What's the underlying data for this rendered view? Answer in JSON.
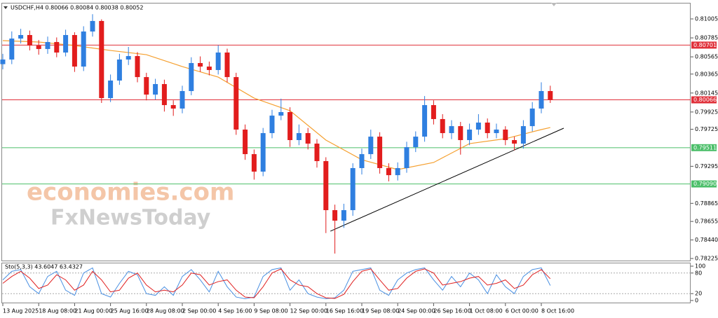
{
  "chart_data": [
    {
      "type": "candlestick",
      "title": "USDCHF,H4 0.80066 0.80084 0.80038 0.80052",
      "watermark": [
        "economies.com",
        "FxNewsToday"
      ],
      "categories": [
        "13 Aug 2025",
        null,
        null,
        null,
        "18 Aug 08:00",
        null,
        null,
        null,
        "21 Aug 00:00",
        null,
        null,
        null,
        "25 Aug 16:00",
        null,
        null,
        null,
        "28 Aug 08:00",
        null,
        null,
        null,
        "2 Sep 00:00",
        null,
        null,
        null,
        "4 Sep 16:00",
        null,
        null,
        null,
        "9 Sep 08:00",
        null,
        null,
        null,
        "12 Sep 00:00",
        null,
        null,
        null,
        "16 Sep 16:00",
        null,
        null,
        null,
        "19 Sep 08:00",
        null,
        null,
        null,
        "24 Sep 00:00",
        null,
        null,
        null,
        "26 Sep 16:00",
        null,
        null,
        null,
        "1 Oct 08:00",
        null,
        null,
        null,
        "6 Oct 00:00",
        null,
        null,
        null,
        "8 Oct 16:00",
        null
      ],
      "open": [
        0.8048,
        0.80534,
        0.80777,
        0.80818,
        0.80696,
        0.80656,
        0.80737,
        0.80615,
        0.80818,
        0.80452,
        0.80859,
        0.80981,
        0.80086,
        0.8029,
        0.80534,
        0.80574,
        0.8033,
        0.80127,
        0.80249,
        0.80005,
        0.79965,
        0.80168,
        0.80493,
        0.80452,
        0.80412,
        0.80615,
        0.8033,
        0.79721,
        0.79436,
        0.79233,
        0.7968,
        0.79883,
        0.79924,
        0.79599,
        0.7968,
        0.79558,
        0.79355,
        0.78786,
        0.78664,
        0.78786,
        0.79274,
        0.79436,
        0.79639,
        0.79274,
        0.79192,
        0.79274,
        0.79517,
        0.79639,
        0.80005,
        0.79843,
        0.7968,
        0.79761,
        0.79599,
        0.79721,
        0.79802,
        0.7968,
        0.79721,
        0.79599,
        0.79558,
        0.79761,
        0.79965,
        0.80168
      ],
      "high": [
        0.806,
        0.8086,
        0.8089,
        0.8087,
        0.8076,
        0.808,
        0.8079,
        0.8088,
        0.8085,
        0.8092,
        0.8106,
        0.81,
        0.8036,
        0.806,
        0.8068,
        0.8062,
        0.8038,
        0.8031,
        0.803,
        0.8006,
        0.8023,
        0.8056,
        0.8057,
        0.8051,
        0.807,
        0.8066,
        0.8038,
        0.7978,
        0.7949,
        0.7974,
        0.7995,
        0.8008,
        0.7998,
        0.7978,
        0.7974,
        0.7961,
        0.794,
        0.7885,
        0.7886,
        0.7933,
        0.795,
        0.7972,
        0.7969,
        0.7933,
        0.7934,
        0.7958,
        0.797,
        0.8011,
        0.8006,
        0.799,
        0.7983,
        0.7981,
        0.7979,
        0.799,
        0.7985,
        0.7979,
        0.7976,
        0.7964,
        0.7983,
        0.8004,
        0.8027,
        0.8023
      ],
      "low": [
        0.8042,
        0.8048,
        0.8072,
        0.8064,
        0.8059,
        0.806,
        0.8056,
        0.8057,
        0.8039,
        0.804,
        0.808,
        0.8003,
        0.8004,
        0.8024,
        0.8047,
        0.8027,
        0.8006,
        0.8007,
        0.7993,
        0.7988,
        0.7991,
        0.8012,
        0.8039,
        0.8035,
        0.8036,
        0.8027,
        0.7966,
        0.7937,
        0.7914,
        0.7918,
        0.7962,
        0.7983,
        0.7952,
        0.7954,
        0.7949,
        0.7928,
        0.7852,
        0.78282,
        0.7858,
        0.7872,
        0.792,
        0.7938,
        0.7921,
        0.7912,
        0.7913,
        0.7922,
        0.7946,
        0.7958,
        0.7978,
        0.7962,
        0.7961,
        0.7943,
        0.7954,
        0.7966,
        0.7962,
        0.7962,
        0.7954,
        0.7948,
        0.795,
        0.797,
        0.7991,
        0.8003
      ],
      "close": [
        0.80534,
        0.80777,
        0.80818,
        0.80696,
        0.80656,
        0.80737,
        0.80615,
        0.80818,
        0.80452,
        0.80859,
        0.80981,
        0.80086,
        0.8029,
        0.80534,
        0.80574,
        0.8033,
        0.80127,
        0.80249,
        0.80005,
        0.79965,
        0.80168,
        0.80493,
        0.80452,
        0.80412,
        0.80615,
        0.8033,
        0.79721,
        0.79436,
        0.79233,
        0.7968,
        0.79883,
        0.79924,
        0.79599,
        0.7968,
        0.79558,
        0.79355,
        0.78786,
        0.78664,
        0.78786,
        0.79274,
        0.79436,
        0.79639,
        0.79274,
        0.79192,
        0.79274,
        0.79517,
        0.79639,
        0.80005,
        0.79843,
        0.7968,
        0.79761,
        0.79599,
        0.79721,
        0.79802,
        0.7968,
        0.79721,
        0.79599,
        0.79558,
        0.79761,
        0.79965,
        0.80168,
        0.80066
      ],
      "up_color": "#2f7fe0",
      "down_color": "#e21d1d",
      "ma": {
        "color": "#f5a030",
        "x": [
          0,
          4,
          8,
          12,
          16,
          20,
          24,
          28,
          32,
          36,
          40,
          44,
          48,
          52,
          56,
          60,
          61
        ],
        "values": [
          0.80753,
          0.80737,
          0.80696,
          0.80639,
          0.8059,
          0.80452,
          0.8033,
          0.80086,
          0.7994,
          0.79599,
          0.79371,
          0.79257,
          0.79339,
          0.79558,
          0.79615,
          0.79721,
          0.79745
        ]
      },
      "trendline": {
        "color": "#000000",
        "x": [
          36.5,
          62.5
        ],
        "values": [
          0.78542,
          0.79737
        ]
      },
      "levels": [
        {
          "value": 0.80701,
          "label": "0.80701",
          "color": "#e0303a"
        },
        {
          "value": 0.80066,
          "label": "0.80066",
          "color": "#e0303a"
        },
        {
          "value": 0.79511,
          "label": "0.79511",
          "color": "#4cbf6a"
        },
        {
          "value": 0.7909,
          "label": "0.79090",
          "color": "#4cbf6a"
        }
      ],
      "ylim": [
        0.78201,
        0.81192
      ],
      "yticks": [
        0.81005,
        0.80785,
        0.80565,
        0.80365,
        0.80145,
        0.79925,
        0.79725,
        0.79295,
        0.78865,
        0.78655,
        {
          "value": 0.7844,
          "label": "0.78440"
        },
        0.78225
      ]
    },
    {
      "type": "line",
      "title": "Sto(5,3,3) 43.6047 63.4327",
      "ylim": [
        0,
        100
      ],
      "yticks": [
        100,
        80,
        20,
        0
      ],
      "levels": [
        80,
        20
      ],
      "series": [
        {
          "color": "#4a90e2",
          "values": [
            60,
            85,
            90,
            40,
            20,
            70,
            85,
            30,
            15,
            80,
            95,
            20,
            10,
            50,
            85,
            75,
            20,
            15,
            40,
            15,
            70,
            90,
            60,
            25,
            85,
            40,
            10,
            5,
            10,
            70,
            90,
            95,
            30,
            60,
            20,
            10,
            5,
            8,
            30,
            85,
            90,
            95,
            30,
            15,
            60,
            80,
            90,
            95,
            60,
            30,
            70,
            40,
            80,
            60,
            20,
            75,
            40,
            20,
            70,
            90,
            95,
            43.6047
          ]
        },
        {
          "color": "#e02020",
          "values": [
            50,
            70,
            85,
            65,
            35,
            45,
            75,
            60,
            30,
            45,
            85,
            60,
            25,
            30,
            65,
            80,
            45,
            25,
            30,
            25,
            45,
            80,
            75,
            45,
            55,
            60,
            30,
            10,
            8,
            40,
            80,
            92,
            60,
            45,
            40,
            20,
            8,
            6,
            18,
            55,
            85,
            92,
            60,
            30,
            35,
            65,
            85,
            92,
            80,
            45,
            50,
            55,
            65,
            70,
            45,
            50,
            60,
            35,
            45,
            75,
            90,
            63.4327
          ]
        }
      ]
    }
  ]
}
